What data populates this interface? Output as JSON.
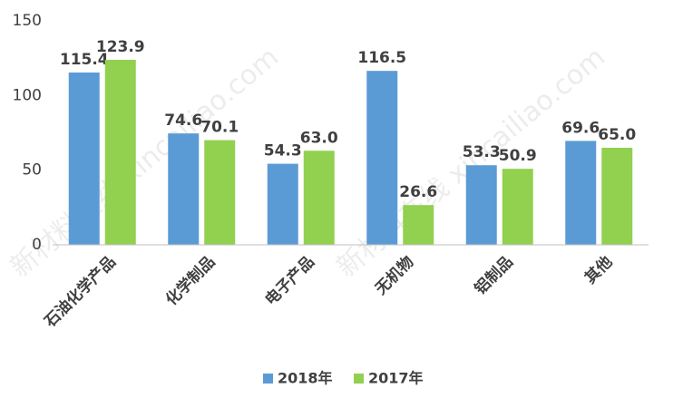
{
  "chart_data": {
    "type": "bar",
    "categories": [
      "石油化学产品",
      "化学制品",
      "电子产品",
      "无机物",
      "铝制品",
      "其他"
    ],
    "series": [
      {
        "name": "2018年",
        "color": "#5b9bd5",
        "values": [
          115.4,
          74.6,
          54.3,
          116.5,
          53.3,
          69.6
        ],
        "value_labels": [
          "115.4",
          "74.6",
          "54.3",
          "116.5",
          "53.3",
          "69.6"
        ]
      },
      {
        "name": "2017年",
        "color": "#92d050",
        "values": [
          123.9,
          70.1,
          63.0,
          26.6,
          50.9,
          65.0
        ],
        "value_labels": [
          "123.9",
          "70.1",
          "63.0",
          "26.6",
          "50.9",
          "65.0"
        ]
      }
    ],
    "ylim": [
      0,
      150
    ],
    "yticks": [
      0,
      50,
      100,
      150
    ],
    "grid": false,
    "legend": "bottom",
    "watermark": "新材料在线 xincailiao.com"
  }
}
